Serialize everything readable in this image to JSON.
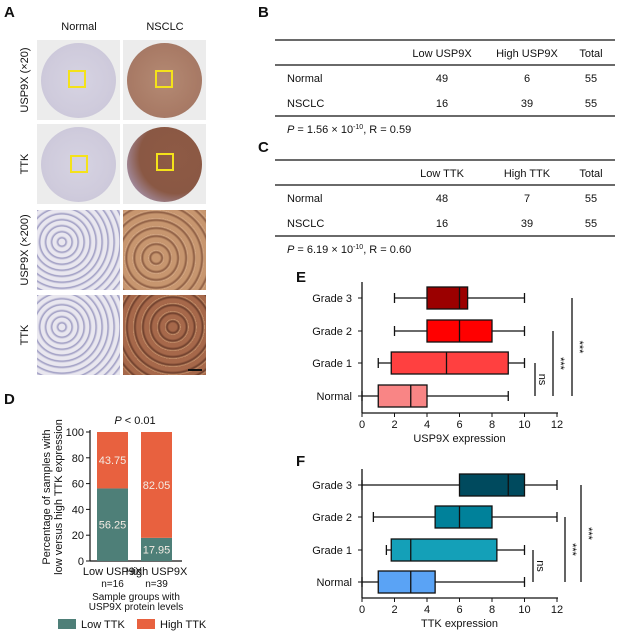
{
  "panels": {
    "A": "A",
    "B": "B",
    "C": "C",
    "D": "D",
    "E": "E",
    "F": "F"
  },
  "panel_a": {
    "columns": [
      "Normal",
      "NSCLC"
    ],
    "rows": [
      "USP9X (×20)",
      "TTK",
      "USP9X (×200)",
      "TTK"
    ]
  },
  "table_b": {
    "headers": [
      "",
      "Low USP9X",
      "High USP9X",
      "Total"
    ],
    "rows": [
      [
        "Normal",
        "49",
        "6",
        "55"
      ],
      [
        "NSCLC",
        "16",
        "39",
        "55"
      ]
    ],
    "stat_p": "P",
    "stat_mid": " = 1.56 × 10",
    "stat_exp": "-10",
    "stat_end": ", R = 0.59"
  },
  "table_c": {
    "headers": [
      "",
      "Low TTK",
      "High TTK",
      "Total"
    ],
    "rows": [
      [
        "Normal",
        "48",
        "7",
        "55"
      ],
      [
        "NSCLC",
        "16",
        "39",
        "55"
      ]
    ],
    "stat_p": "P",
    "stat_mid": " = 6.19 × 10",
    "stat_exp": "-10",
    "stat_end": ", R = 0.60"
  },
  "chart_data": [
    {
      "panel": "D",
      "type": "bar",
      "stacked": true,
      "title_p": "P",
      "title_rest": " < 0.01",
      "ylabel_lines": [
        "Percentage of samples with",
        "low versus high TTK expression"
      ],
      "xlabel_lines": [
        "Sample groups with",
        "USP9X protein levels"
      ],
      "ylim": [
        0,
        100
      ],
      "yticks": [
        "0",
        "20",
        "40",
        "60",
        "80",
        "100"
      ],
      "categories": [
        "Low USP9X",
        "High USP9X"
      ],
      "category_n": [
        "n=16",
        "n=39"
      ],
      "series": [
        {
          "name": "Low TTK",
          "color": "#4e7f78",
          "values": [
            56.25,
            17.95
          ],
          "labels": [
            "56.25",
            "17.95"
          ]
        },
        {
          "name": "High TTK",
          "color": "#e8613f",
          "values": [
            43.75,
            82.05
          ],
          "labels": [
            "43.75",
            "82.05"
          ]
        }
      ],
      "legend_placement": "bottom"
    },
    {
      "panel": "E",
      "type": "boxplot",
      "orientation": "horizontal",
      "xlabel": "USP9X expression",
      "xlim": [
        0,
        12
      ],
      "xticks": [
        "0",
        "2",
        "4",
        "6",
        "8",
        "10",
        "12"
      ],
      "categories": [
        "Grade 3",
        "Grade 2",
        "Grade 1",
        "Normal"
      ],
      "boxes": [
        {
          "min": 2,
          "q1": 4,
          "median": 6,
          "q3": 6.5,
          "max": 10,
          "color": "#9b0000"
        },
        {
          "min": 2,
          "q1": 4,
          "median": 6,
          "q3": 8,
          "max": 10,
          "color": "#ff0000"
        },
        {
          "min": 1,
          "q1": 1.8,
          "median": 5.2,
          "q3": 9,
          "max": 10,
          "color": "#ff4040"
        },
        {
          "min": 0,
          "q1": 1,
          "median": 3,
          "q3": 4,
          "max": 9,
          "color": "#f98585"
        }
      ],
      "significance": [
        {
          "from": "Grade 1",
          "to": "Normal",
          "label": "ns"
        },
        {
          "from": "Grade 2",
          "to": "Normal",
          "label": "***"
        },
        {
          "from": "Grade 3",
          "to": "Normal",
          "label": "***"
        }
      ]
    },
    {
      "panel": "F",
      "type": "boxplot",
      "orientation": "horizontal",
      "xlabel": "TTK expression",
      "xlim": [
        0,
        12
      ],
      "xticks": [
        "0",
        "2",
        "4",
        "6",
        "8",
        "10",
        "12"
      ],
      "categories": [
        "Grade 3",
        "Grade 2",
        "Grade 1",
        "Normal"
      ],
      "boxes": [
        {
          "min": 0,
          "q1": 6,
          "median": 9,
          "q3": 10,
          "max": 12,
          "color": "#004a5e"
        },
        {
          "min": 0.7,
          "q1": 4.5,
          "median": 6,
          "q3": 8,
          "max": 12,
          "color": "#00819a"
        },
        {
          "min": 1.5,
          "q1": 1.8,
          "median": 3,
          "q3": 8.3,
          "max": 10,
          "color": "#14a0b8"
        },
        {
          "min": 0,
          "q1": 1,
          "median": 3,
          "q3": 4.5,
          "max": 10,
          "color": "#5aa3f5"
        }
      ],
      "significance": [
        {
          "from": "Grade 1",
          "to": "Normal",
          "label": "ns"
        },
        {
          "from": "Grade 2",
          "to": "Normal",
          "label": "***"
        },
        {
          "from": "Grade 3",
          "to": "Normal",
          "label": "***"
        }
      ]
    }
  ]
}
